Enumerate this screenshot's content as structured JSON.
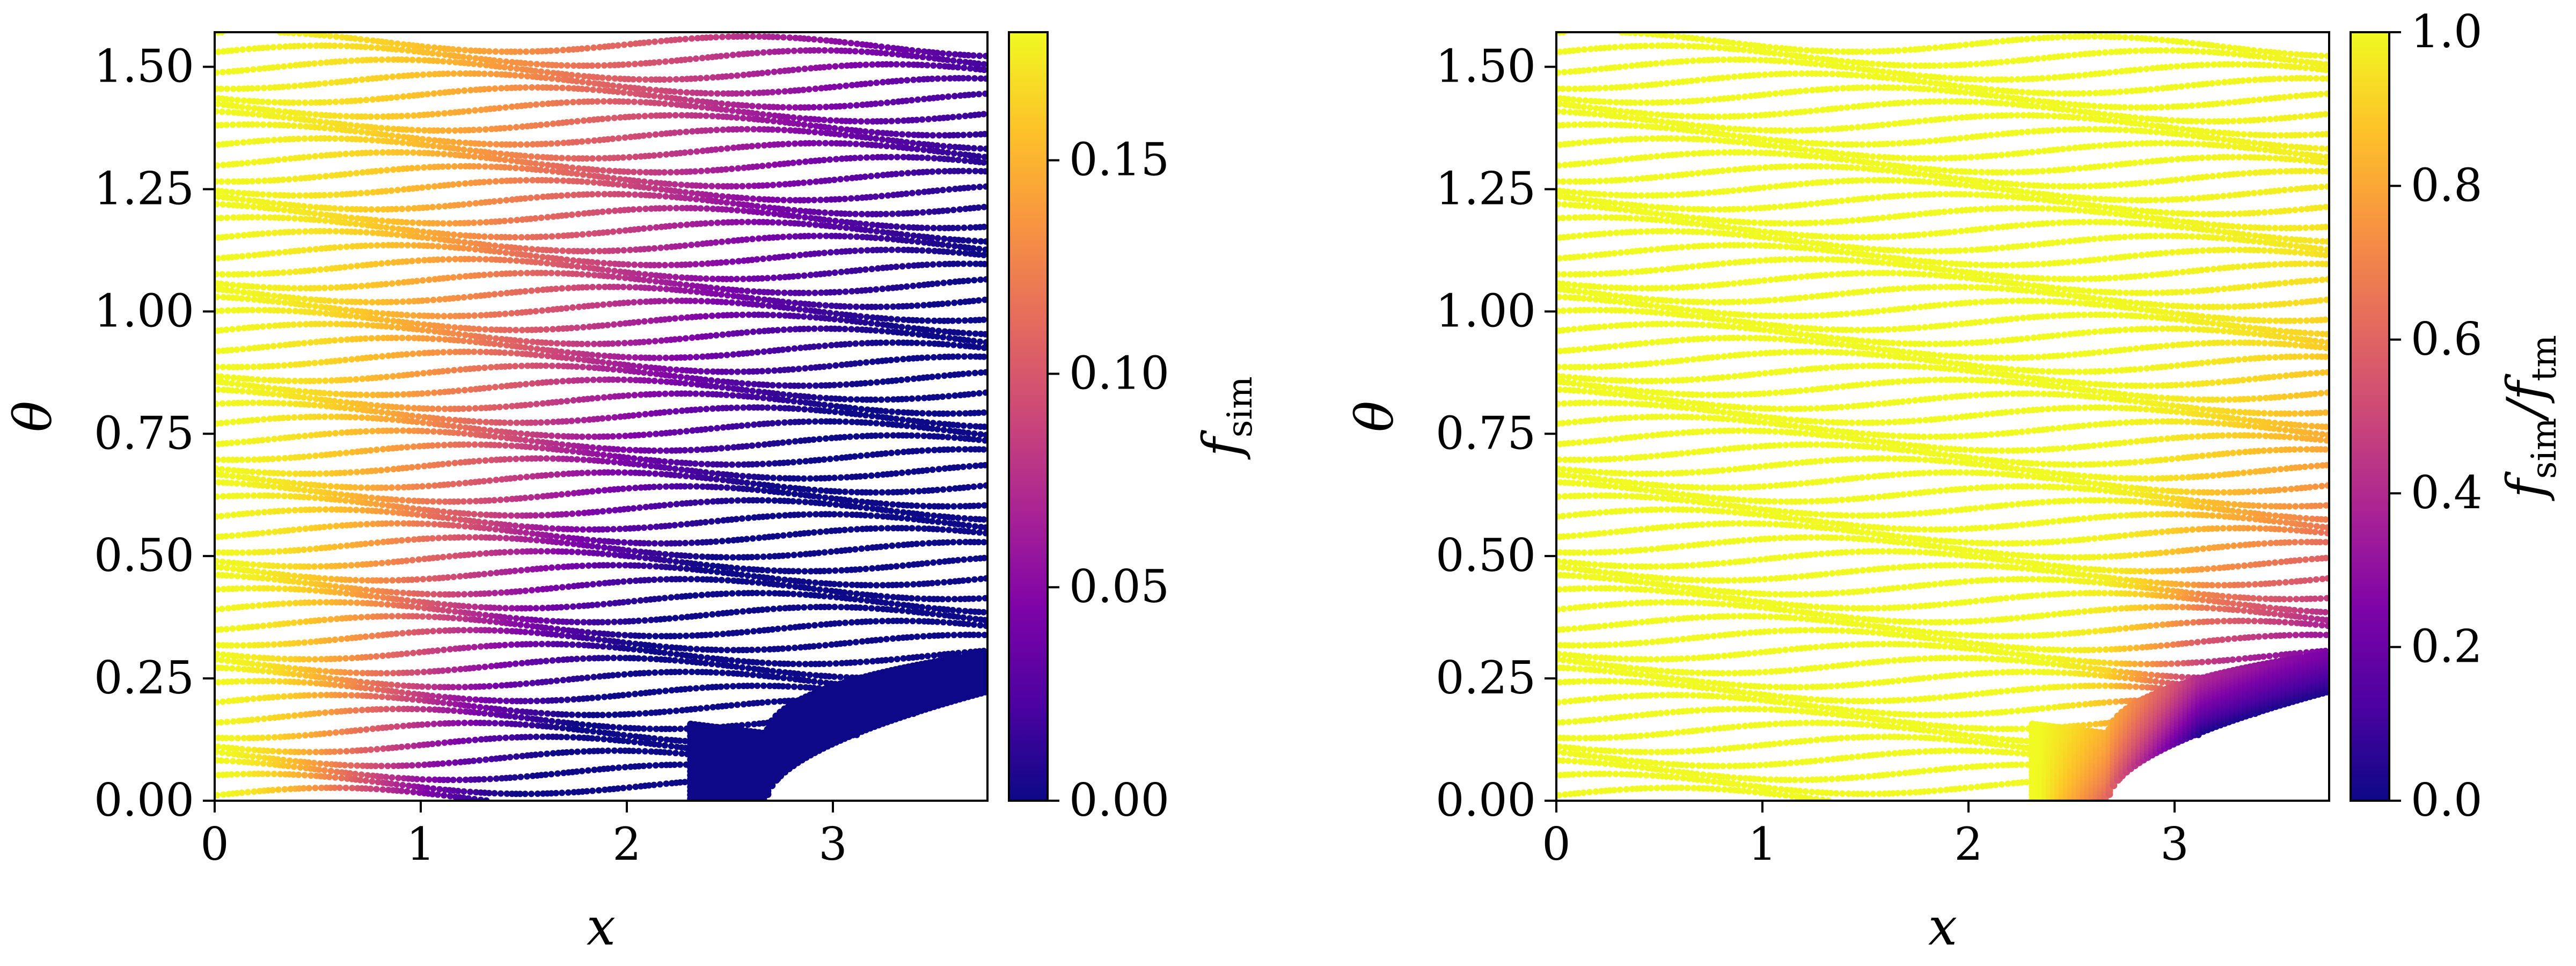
{
  "chart_data": [
    {
      "type": "scatter",
      "title": "",
      "xlabel": "x",
      "ylabel": "θ",
      "xlim": [
        0,
        3.75
      ],
      "ylim": [
        0,
        1.5708
      ],
      "xticks": [
        "0",
        "1",
        "2",
        "3"
      ],
      "xtick_values": [
        0,
        1,
        2,
        3
      ],
      "yticks": [
        "0.00",
        "0.25",
        "0.50",
        "0.75",
        "1.00",
        "1.25",
        "1.50"
      ],
      "ytick_values": [
        0,
        0.25,
        0.5,
        0.75,
        1.0,
        1.25,
        1.5
      ],
      "colorbar": {
        "label_main": "f",
        "label_sub": "sim",
        "colormap": "plasma",
        "range": [
          0,
          0.18
        ],
        "ticks": [
          "0.00",
          "0.05",
          "0.10",
          "0.15"
        ],
        "tick_values": [
          0,
          0.05,
          0.1,
          0.15
        ]
      },
      "grid": false,
      "series_description_values": {
        "empty_region_boundary": [
          [
            2.68,
            0.0
          ],
          [
            2.8,
            0.09
          ],
          [
            3.0,
            0.15
          ],
          [
            3.3,
            0.19
          ],
          [
            3.75,
            0.22
          ]
        ]
      }
    },
    {
      "type": "scatter",
      "title": "",
      "xlabel": "x",
      "ylabel": "θ",
      "xlim": [
        0,
        3.75
      ],
      "ylim": [
        0,
        1.5708
      ],
      "xticks": [
        "0",
        "1",
        "2",
        "3"
      ],
      "xtick_values": [
        0,
        1,
        2,
        3
      ],
      "yticks": [
        "0.00",
        "0.25",
        "0.50",
        "0.75",
        "1.00",
        "1.25",
        "1.50"
      ],
      "ytick_values": [
        0,
        0.25,
        0.5,
        0.75,
        1.0,
        1.25,
        1.5
      ],
      "colorbar": {
        "label_main1": "f",
        "label_sub1": "sim",
        "label_sep": "/",
        "label_main2": "f",
        "label_sub2": "tm",
        "colormap": "plasma",
        "range": [
          0,
          1.0
        ],
        "ticks": [
          "0.0",
          "0.2",
          "0.4",
          "0.6",
          "0.8",
          "1.0"
        ],
        "tick_values": [
          0,
          0.2,
          0.4,
          0.6,
          0.8,
          1.0
        ]
      },
      "grid": false,
      "series_description_values": {
        "empty_region_boundary": [
          [
            2.68,
            0.0
          ],
          [
            2.8,
            0.09
          ],
          [
            3.0,
            0.15
          ],
          [
            3.3,
            0.19
          ],
          [
            3.75,
            0.22
          ]
        ]
      }
    }
  ]
}
